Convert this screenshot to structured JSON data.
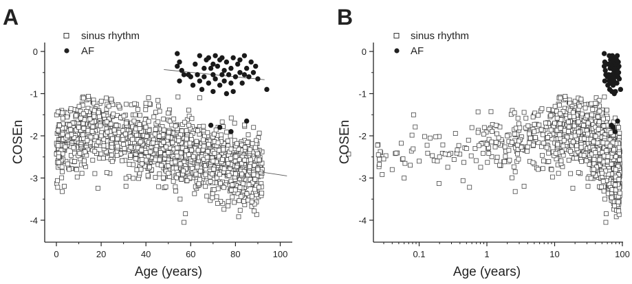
{
  "chart_data": [
    {
      "type": "scatter",
      "panel_label": "A",
      "xlabel": "Age (years)",
      "ylabel": "COSEn",
      "xscale": "linear",
      "xlim": [
        -5,
        108
      ],
      "ylim": [
        -4.4,
        0.15
      ],
      "xticks": [
        0,
        20,
        40,
        60,
        80,
        100
      ],
      "xtick_labels": [
        "0",
        "20",
        "40",
        "60",
        "80",
        "100"
      ],
      "yticks": [
        0,
        -1,
        -2,
        -3,
        -4
      ],
      "ytick_labels": [
        "0",
        "-1",
        "-2",
        "-3",
        "-4"
      ],
      "legend": {
        "position": "top-left",
        "entries": [
          "sinus rhythm",
          "AF"
        ]
      },
      "grid": false,
      "series": [
        {
          "name": "sinus rhythm",
          "marker": "open-square",
          "description": "Approx. 1500 points, ages 0-92 years; COSEn centered near -2 at young ages declining to about -2.8 in old age, vertical spread of roughly +/-0.5",
          "sample_points": [
            [
              1,
              -2.5
            ],
            [
              5,
              -2.0
            ],
            [
              10,
              -1.8
            ],
            [
              15,
              -1.6
            ],
            [
              20,
              -2.0
            ],
            [
              30,
              -2.2
            ],
            [
              40,
              -2.4
            ],
            [
              50,
              -2.4
            ],
            [
              60,
              -2.6
            ],
            [
              70,
              -2.6
            ],
            [
              80,
              -2.9
            ],
            [
              90,
              -2.8
            ],
            [
              57,
              -4.05
            ],
            [
              64,
              -1.1
            ],
            [
              28,
              -1.3
            ],
            [
              72,
              -3.6
            ]
          ],
          "trend_line": {
            "x": [
              0,
              103
            ],
            "y": [
              -2.12,
              -2.95
            ]
          }
        },
        {
          "name": "AF",
          "marker": "filled-circle",
          "points": [
            [
              54,
              -0.05
            ],
            [
              54,
              -0.35
            ],
            [
              55,
              -0.25
            ],
            [
              56,
              -0.45
            ],
            [
              55,
              -0.7
            ],
            [
              57,
              -0.55
            ],
            [
              59,
              -0.55
            ],
            [
              60,
              -0.6
            ],
            [
              61,
              -0.8
            ],
            [
              62,
              -0.3
            ],
            [
              63,
              -0.55
            ],
            [
              64,
              -0.1
            ],
            [
              64,
              -0.7
            ],
            [
              65,
              -0.9
            ],
            [
              66,
              -0.4
            ],
            [
              66,
              -0.6
            ],
            [
              67,
              -0.2
            ],
            [
              68,
              -0.15
            ],
            [
              68,
              -0.75
            ],
            [
              69,
              -0.4
            ],
            [
              70,
              -0.3
            ],
            [
              70,
              -0.55
            ],
            [
              70,
              -0.95
            ],
            [
              71,
              -0.1
            ],
            [
              71,
              -0.65
            ],
            [
              72,
              -0.35
            ],
            [
              73,
              -0.2
            ],
            [
              73,
              -0.8
            ],
            [
              74,
              -0.15
            ],
            [
              74,
              -0.55
            ],
            [
              75,
              -0.45
            ],
            [
              75,
              -0.7
            ],
            [
              76,
              -0.25
            ],
            [
              76,
              -1.0
            ],
            [
              77,
              -0.55
            ],
            [
              78,
              -0.4
            ],
            [
              78,
              -0.75
            ],
            [
              79,
              -0.15
            ],
            [
              79,
              -0.95
            ],
            [
              80,
              -0.6
            ],
            [
              81,
              -0.3
            ],
            [
              82,
              -0.5
            ],
            [
              82,
              -0.2
            ],
            [
              83,
              -0.75
            ],
            [
              84,
              -0.55
            ],
            [
              84,
              -0.1
            ],
            [
              85,
              -0.4
            ],
            [
              86,
              -0.6
            ],
            [
              87,
              -0.25
            ],
            [
              88,
              -0.5
            ],
            [
              89,
              -0.35
            ],
            [
              90,
              -0.65
            ],
            [
              94,
              -0.9
            ],
            [
              69,
              -1.75
            ],
            [
              73,
              -1.8
            ],
            [
              78,
              -1.9
            ],
            [
              85,
              -1.65
            ]
          ],
          "trend_line": {
            "x": [
              48,
              93
            ],
            "y": [
              -0.43,
              -0.67
            ]
          }
        }
      ]
    },
    {
      "type": "scatter",
      "panel_label": "B",
      "xlabel": "Age (years)",
      "ylabel": "COSEn",
      "xscale": "log",
      "xlim": [
        0.02,
        100
      ],
      "ylim": [
        -4.4,
        0.15
      ],
      "xticks": [
        0.1,
        1,
        10,
        100
      ],
      "xtick_labels": [
        "0.1",
        "1",
        "10",
        "100"
      ],
      "yticks": [
        0,
        -1,
        -2,
        -3,
        -4
      ],
      "ytick_labels": [
        "0",
        "-1",
        "-2",
        "-3",
        "-4"
      ],
      "legend": {
        "position": "top-left",
        "entries": [
          "sinus rhythm",
          "AF"
        ]
      },
      "grid": false,
      "series": [
        {
          "name": "sinus rhythm",
          "marker": "open-square",
          "description": "Same data as panel A on a log age axis; sparse points from 0.02-5 years rising from about -2.7 to -2.0, dense cloud from 10-95 years between -1.1 and -4.05",
          "sample_points": [
            [
              0.025,
              -2.45
            ],
            [
              0.03,
              -2.55
            ],
            [
              0.04,
              -2.8
            ],
            [
              0.06,
              -3.0
            ],
            [
              0.1,
              -2.6
            ],
            [
              0.2,
              -2.5
            ],
            [
              0.5,
              -2.3
            ],
            [
              1,
              -2.2
            ],
            [
              2,
              -2.0
            ],
            [
              5,
              -1.9
            ],
            [
              10,
              -1.7
            ],
            [
              20,
              -2.0
            ],
            [
              40,
              -2.4
            ],
            [
              60,
              -2.6
            ],
            [
              80,
              -2.8
            ],
            [
              57,
              -4.05
            ]
          ]
        },
        {
          "name": "AF",
          "marker": "filled-circle",
          "description": "Same AF data as panel A, compressed at ages 54-94 on the log axis",
          "points": [
            [
              54,
              -0.05
            ],
            [
              54,
              -0.35
            ],
            [
              55,
              -0.25
            ],
            [
              56,
              -0.45
            ],
            [
              55,
              -0.7
            ],
            [
              57,
              -0.55
            ],
            [
              59,
              -0.55
            ],
            [
              60,
              -0.6
            ],
            [
              61,
              -0.8
            ],
            [
              62,
              -0.3
            ],
            [
              63,
              -0.55
            ],
            [
              64,
              -0.1
            ],
            [
              64,
              -0.7
            ],
            [
              65,
              -0.9
            ],
            [
              66,
              -0.4
            ],
            [
              66,
              -0.6
            ],
            [
              67,
              -0.2
            ],
            [
              68,
              -0.15
            ],
            [
              68,
              -0.75
            ],
            [
              69,
              -0.4
            ],
            [
              70,
              -0.3
            ],
            [
              70,
              -0.55
            ],
            [
              70,
              -0.95
            ],
            [
              71,
              -0.1
            ],
            [
              71,
              -0.65
            ],
            [
              72,
              -0.35
            ],
            [
              73,
              -0.2
            ],
            [
              73,
              -0.8
            ],
            [
              74,
              -0.15
            ],
            [
              74,
              -0.55
            ],
            [
              75,
              -0.45
            ],
            [
              75,
              -0.7
            ],
            [
              76,
              -0.25
            ],
            [
              76,
              -1.0
            ],
            [
              77,
              -0.55
            ],
            [
              78,
              -0.4
            ],
            [
              78,
              -0.75
            ],
            [
              79,
              -0.15
            ],
            [
              79,
              -0.95
            ],
            [
              80,
              -0.6
            ],
            [
              81,
              -0.3
            ],
            [
              82,
              -0.5
            ],
            [
              82,
              -0.2
            ],
            [
              83,
              -0.75
            ],
            [
              84,
              -0.55
            ],
            [
              84,
              -0.1
            ],
            [
              85,
              -0.4
            ],
            [
              86,
              -0.6
            ],
            [
              87,
              -0.25
            ],
            [
              88,
              -0.5
            ],
            [
              89,
              -0.35
            ],
            [
              90,
              -0.65
            ],
            [
              94,
              -0.9
            ],
            [
              69,
              -1.75
            ],
            [
              73,
              -1.8
            ],
            [
              78,
              -1.9
            ],
            [
              85,
              -1.65
            ]
          ]
        }
      ]
    }
  ]
}
